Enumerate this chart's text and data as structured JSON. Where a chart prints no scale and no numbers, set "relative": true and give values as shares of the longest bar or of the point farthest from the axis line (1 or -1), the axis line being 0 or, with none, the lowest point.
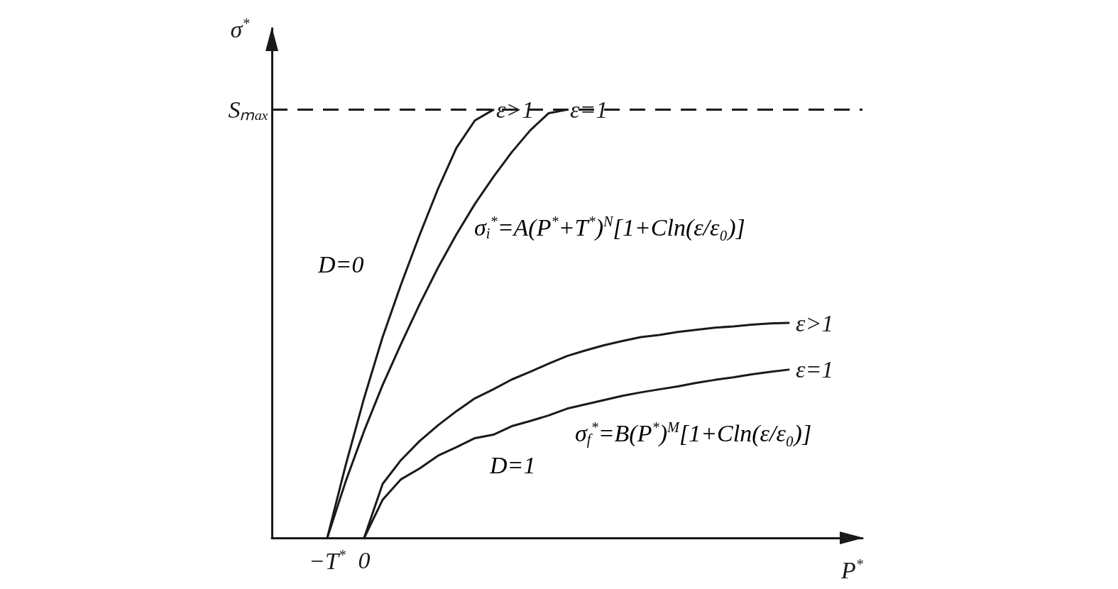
{
  "chart_data": {
    "type": "line",
    "relative": true,
    "xlabel": "P$^{*}$",
    "ylabel": "σ$^{*}$",
    "categories": [
      null,
      null,
      null,
      "−T$^{*}$",
      null,
      "0",
      null,
      null,
      null,
      null,
      null,
      null,
      null,
      null,
      null,
      null,
      null,
      null,
      null,
      null,
      null,
      null,
      null,
      null,
      null,
      null,
      null,
      null,
      null,
      null,
      null,
      null,
      null
    ],
    "marker": "none",
    "line_style": "solid",
    "grid": false,
    "legend": false,
    "series": [
      {
        "name": "ε>1",
        "color": "#1a1a1a",
        "values": [
          null,
          null,
          null,
          0,
          0.17,
          0.327,
          0.469,
          0.592,
          0.707,
          0.815,
          0.911,
          0.975,
          1,
          null,
          null,
          null,
          null,
          null,
          null,
          null,
          null,
          null,
          null,
          null,
          null,
          null,
          null,
          null,
          null,
          null,
          null,
          null,
          null
        ]
      },
      {
        "name": "ε=1",
        "color": "#1a1a1a",
        "values": [
          null,
          null,
          null,
          0,
          0.132,
          0.25,
          0.357,
          0.453,
          0.545,
          0.631,
          0.709,
          0.78,
          0.843,
          0.901,
          0.952,
          0.992,
          1,
          null,
          null,
          null,
          null,
          null,
          null,
          null,
          null,
          null,
          null,
          null,
          null,
          null,
          null,
          null,
          null
        ]
      },
      {
        "name": "ε>1",
        "color": "#1a1a1a",
        "values": [
          null,
          null,
          null,
          null,
          null,
          0,
          0.126,
          0.182,
          0.226,
          0.263,
          0.296,
          0.326,
          0.347,
          0.37,
          0.388,
          0.407,
          0.425,
          0.438,
          0.45,
          0.46,
          0.469,
          0.474,
          0.481,
          0.486,
          0.491,
          0.494,
          0.498,
          0.501,
          0.502,
          null,
          null,
          null,
          null
        ]
      },
      {
        "name": "ε=1",
        "color": "#1a1a1a",
        "values": [
          null,
          null,
          null,
          null,
          null,
          0,
          0.089,
          0.137,
          0.162,
          0.192,
          0.212,
          0.233,
          0.241,
          0.261,
          0.273,
          0.286,
          0.302,
          0.312,
          0.322,
          0.332,
          0.34,
          0.347,
          0.354,
          0.362,
          0.369,
          0.375,
          0.382,
          0.388,
          0.393,
          null,
          null,
          null,
          null
        ]
      }
    ],
    "ref_lines": [
      {
        "axis": "y",
        "value": 1,
        "label": "Sₘₐₓ",
        "line_style": "dashed",
        "color": "#1a1a1a"
      }
    ],
    "annotations": [
      "D=0",
      "σ$_{i}$$^{*}$=A(P$^{*}$+T$^{*}$)$^{N}$[1+Cln(ε/ε₀)]",
      "D=1",
      "σ$_{f}$$^{*}$=B(P$^{*}$)$^{M}$[1+Cln(ε/ε₀)]"
    ]
  }
}
